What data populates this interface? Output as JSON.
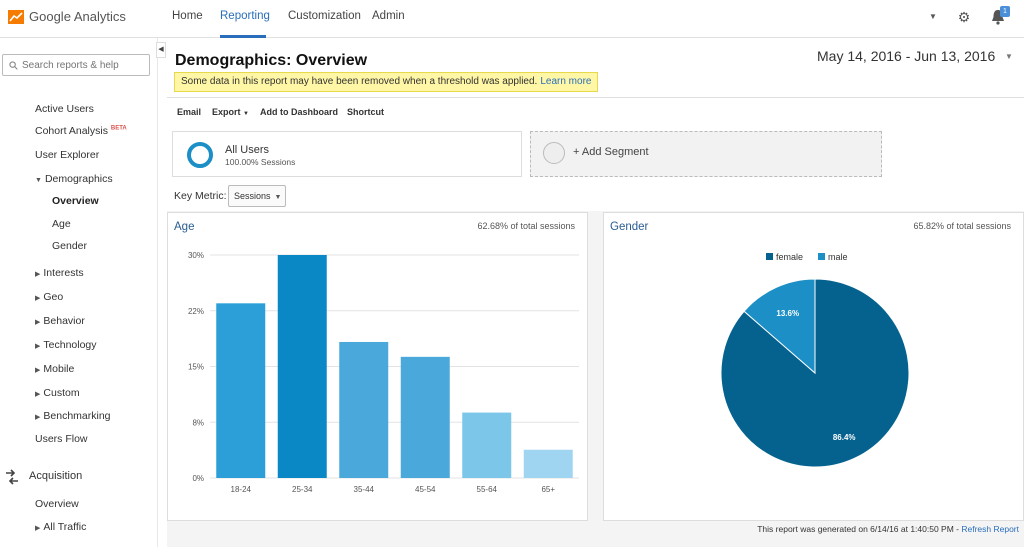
{
  "topbar": {
    "logo_text": "Google Analytics",
    "nav": [
      "Home",
      "Reporting",
      "Customization",
      "Admin"
    ],
    "active_nav": "Reporting",
    "notification_count": "1"
  },
  "sidebar": {
    "search_placeholder": "Search reports & help",
    "items": [
      {
        "label": "Active Users"
      },
      {
        "label": "Cohort Analysis",
        "badge": "BETA"
      },
      {
        "label": "User Explorer"
      },
      {
        "label": "Demographics"
      },
      {
        "label": "Overview"
      },
      {
        "label": "Age"
      },
      {
        "label": "Gender"
      },
      {
        "label": "Interests"
      },
      {
        "label": "Geo"
      },
      {
        "label": "Behavior"
      },
      {
        "label": "Technology"
      },
      {
        "label": "Mobile"
      },
      {
        "label": "Custom"
      },
      {
        "label": "Benchmarking"
      },
      {
        "label": "Users Flow"
      },
      {
        "label": "Acquisition"
      },
      {
        "label": "Overview"
      },
      {
        "label": "All Traffic"
      }
    ]
  },
  "header": {
    "title": "Demographics: Overview",
    "threshold_text": "Some data in this report may have been removed when a threshold was applied.",
    "learn_more": "Learn more",
    "date_range": "May 14, 2016 - Jun 13, 2016"
  },
  "toolbar": {
    "email": "Email",
    "export": "Export",
    "add_to_dashboard": "Add to Dashboard",
    "shortcut": "Shortcut"
  },
  "segments": {
    "name": "All Users",
    "sub": "100.00% Sessions",
    "add_label": "+ Add Segment"
  },
  "key_metric": {
    "label": "Key Metric:",
    "value": "Sessions"
  },
  "age_panel": {
    "title": "Age",
    "pct_text": "62.68% of total sessions"
  },
  "gender_panel": {
    "title": "Gender",
    "pct_text": "65.82% of total sessions"
  },
  "footer": {
    "generated": "This report was generated on 6/14/16 at 1:40:50 PM - ",
    "refresh": "Refresh Report"
  },
  "colors": {
    "accent": "#2a6ebb",
    "female": "#05628f",
    "male": "#1b8fc6"
  },
  "chart_data": [
    {
      "type": "bar",
      "title": "Age",
      "categories": [
        "18-24",
        "25-34",
        "35-44",
        "45-54",
        "55-64",
        "65+"
      ],
      "values": [
        23.5,
        30,
        18.3,
        16.3,
        8.8,
        3.8
      ],
      "yticks": [
        "0%",
        "8%",
        "15%",
        "22%",
        "30%"
      ],
      "ylim": [
        0,
        30
      ],
      "colors": [
        "#2d9fd8",
        "#0a88c6",
        "#4aa9da",
        "#4aa9da",
        "#7cc6ea",
        "#9fd5f0"
      ]
    },
    {
      "type": "pie",
      "title": "Gender",
      "labels": [
        "female",
        "male"
      ],
      "values": [
        86.4,
        13.6
      ],
      "value_labels": [
        "86.4%",
        "13.6%"
      ],
      "legend": "top"
    }
  ]
}
